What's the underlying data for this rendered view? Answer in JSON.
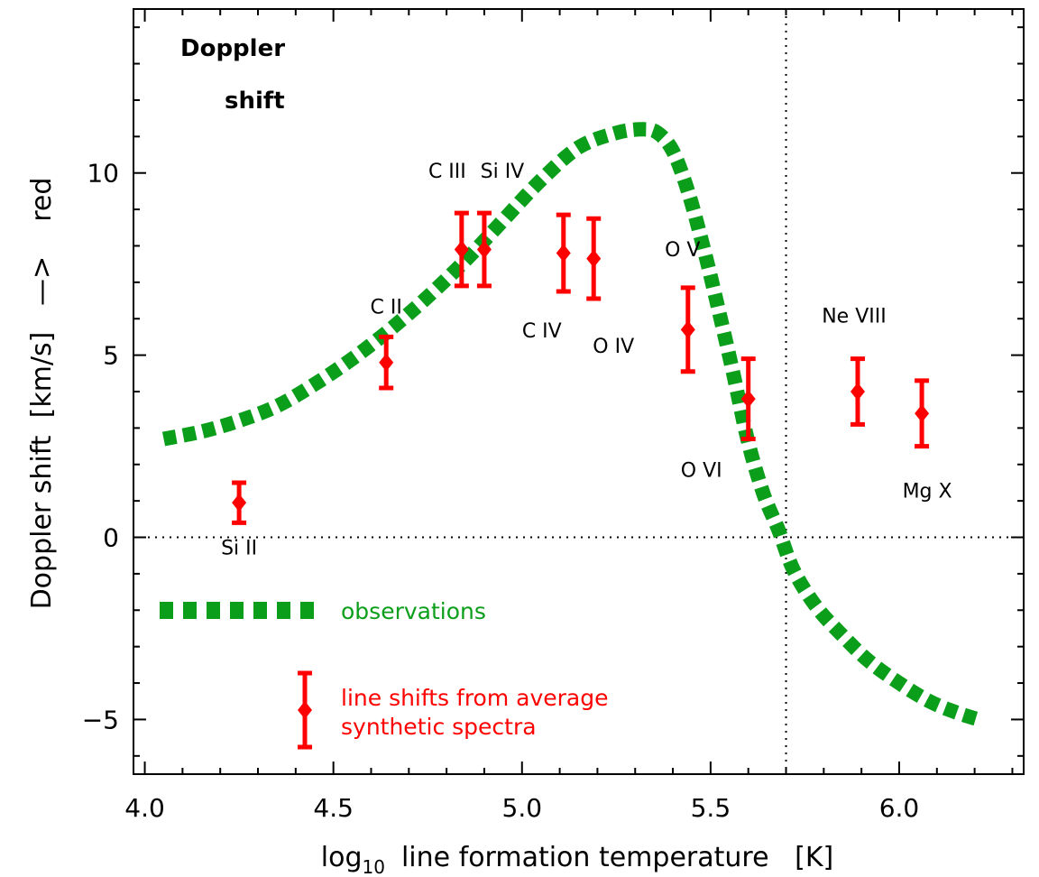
{
  "chart_data": {
    "type": "scatter",
    "title_lines": [
      "Doppler",
      "shift"
    ],
    "xlabel_pre": "log",
    "xlabel_sub": "10",
    "xlabel_post": "line formation temperature   [K]",
    "ylabel": "Doppler shift  [km/s]   —>    red",
    "xlim": [
      3.97,
      6.33
    ],
    "ylim": [
      -6.5,
      14.5
    ],
    "x_ticks": [
      4.0,
      4.5,
      5.0,
      5.5,
      6.0
    ],
    "x_tick_labels": [
      "4.0",
      "4.5",
      "5.0",
      "5.5",
      "6.0"
    ],
    "y_ticks": [
      -5,
      0,
      5,
      10
    ],
    "y_tick_labels": [
      "−5",
      "0",
      "5",
      "10"
    ],
    "vline_x": 5.7,
    "hline_y": 0,
    "grid": false,
    "colors": {
      "observations": "#0a9e1a",
      "synthetic": "#ff0000",
      "axes": "#000000"
    },
    "series": [
      {
        "name": "observations",
        "style": "thick dashed line",
        "x": [
          4.05,
          4.15,
          4.25,
          4.35,
          4.45,
          4.55,
          4.65,
          4.75,
          4.85,
          4.95,
          5.05,
          5.15,
          5.25,
          5.32,
          5.36,
          5.4,
          5.44,
          5.48,
          5.52,
          5.56,
          5.6,
          5.64,
          5.68,
          5.72,
          5.78,
          5.85,
          5.92,
          6.0,
          6.08,
          6.15,
          6.21
        ],
        "y": [
          2.7,
          2.9,
          3.2,
          3.6,
          4.2,
          4.9,
          5.7,
          6.6,
          7.6,
          8.7,
          9.8,
          10.7,
          11.1,
          11.2,
          11.1,
          10.6,
          9.5,
          8.0,
          6.3,
          4.5,
          2.6,
          1.2,
          0.2,
          -0.9,
          -1.9,
          -2.7,
          -3.4,
          -4.0,
          -4.5,
          -4.8,
          -5.0
        ]
      },
      {
        "name": "line shifts from average synthetic spectra",
        "style": "points with error bars",
        "points": [
          {
            "ion": "Si II",
            "x": 4.25,
            "y": 0.95,
            "err": 0.55
          },
          {
            "ion": "C II",
            "x": 4.64,
            "y": 4.8,
            "err": 0.7
          },
          {
            "ion": "C III",
            "x": 4.84,
            "y": 7.9,
            "err": 1.0
          },
          {
            "ion": "Si IV",
            "x": 4.9,
            "y": 7.9,
            "err": 1.0
          },
          {
            "ion": "C IV",
            "x": 5.11,
            "y": 7.8,
            "err": 1.05
          },
          {
            "ion": "O IV",
            "x": 5.19,
            "y": 7.65,
            "err": 1.1
          },
          {
            "ion": "O V",
            "x": 5.44,
            "y": 5.7,
            "err": 1.15
          },
          {
            "ion": "O VI",
            "x": 5.6,
            "y": 3.8,
            "err": 1.1
          },
          {
            "ion": "Ne VIII",
            "x": 5.89,
            "y": 4.0,
            "err": 0.9
          },
          {
            "ion": "Mg X",
            "x": 6.06,
            "y": 3.4,
            "err": 0.9
          }
        ]
      }
    ],
    "legend": {
      "placement": "lower-left",
      "observations_label": "observations",
      "synthetic_label_lines": [
        "line shifts from average",
        "synthetic spectra"
      ]
    }
  }
}
